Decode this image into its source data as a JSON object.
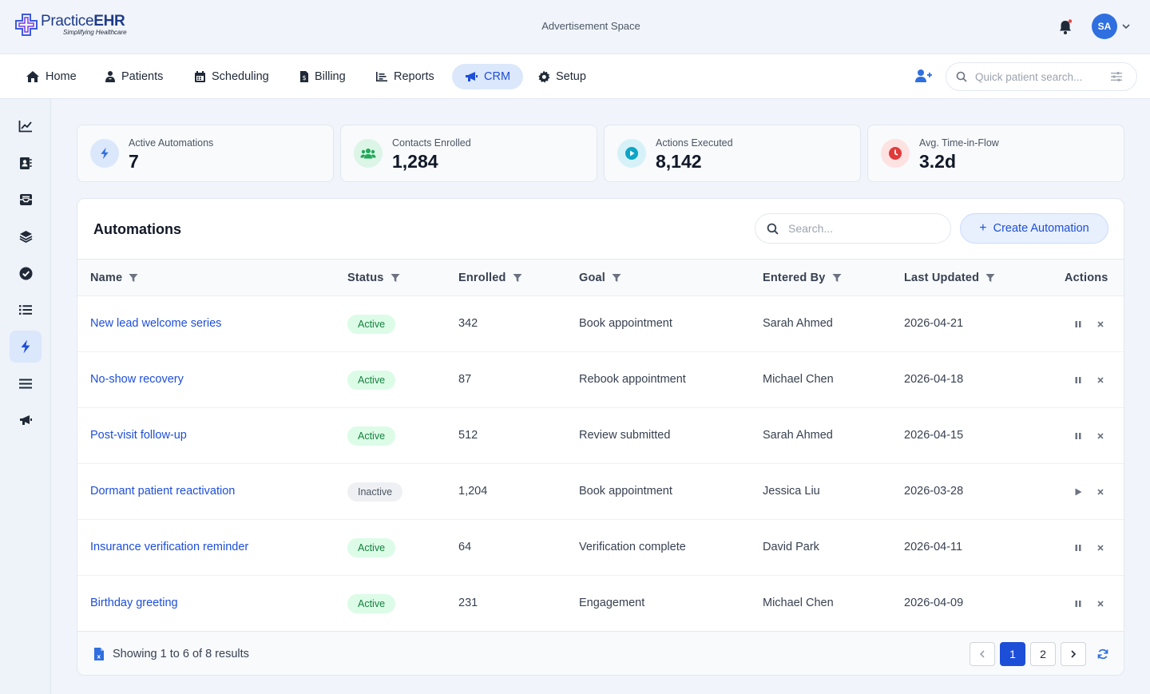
{
  "brand": {
    "name_prefix": "Practice",
    "name_suffix": "EHR",
    "tagline": "Simplifying Healthcare"
  },
  "header": {
    "ad_text": "Advertisement Space",
    "user_initials": "SA"
  },
  "nav": {
    "items": [
      {
        "label": "Home",
        "icon": "home-icon"
      },
      {
        "label": "Patients",
        "icon": "patients-icon"
      },
      {
        "label": "Scheduling",
        "icon": "calendar-icon"
      },
      {
        "label": "Billing",
        "icon": "billing-icon"
      },
      {
        "label": "Reports",
        "icon": "reports-icon"
      },
      {
        "label": "CRM",
        "icon": "megaphone-icon",
        "active": true
      },
      {
        "label": "Setup",
        "icon": "gear-icon"
      }
    ],
    "quick_search_placeholder": "Quick patient search..."
  },
  "sidebar": {
    "items": [
      "chart-line-icon",
      "contact-book-icon",
      "inbox-icon",
      "layers-icon",
      "check-circle-icon",
      "list-icon",
      "bolt-icon",
      "menu-icon",
      "megaphone-icon"
    ],
    "active_index": 6
  },
  "kpis": [
    {
      "label": "Active Automations",
      "value": "7",
      "icon": "bolt-icon",
      "color": "#2f6fe0",
      "bg": "#dbe7fb"
    },
    {
      "label": "Contacts Enrolled",
      "value": "1,284",
      "icon": "users-icon",
      "color": "#22a85a",
      "bg": "#dcf5e6"
    },
    {
      "label": "Actions Executed",
      "value": "8,142",
      "icon": "play-circle-icon",
      "color": "#0ea5c6",
      "bg": "#d7f1f8"
    },
    {
      "label": "Avg. Time-in-Flow",
      "value": "3.2d",
      "icon": "clock-icon",
      "color": "#e03b3b",
      "bg": "#fde2e2"
    }
  ],
  "panel": {
    "title": "Automations",
    "search_placeholder": "Search...",
    "create_label": "Create Automation",
    "columns": [
      "Name",
      "Status",
      "Enrolled",
      "Goal",
      "Entered By",
      "Last Updated",
      "Actions"
    ],
    "rows": [
      {
        "name": "New lead welcome series",
        "status": "Active",
        "enrolled": "342",
        "goal": "Book appointment",
        "entered_by": "Sarah Ahmed",
        "updated": "2026-04-21"
      },
      {
        "name": "No-show recovery",
        "status": "Active",
        "enrolled": "87",
        "goal": "Rebook appointment",
        "entered_by": "Michael Chen",
        "updated": "2026-04-18"
      },
      {
        "name": "Post-visit follow-up",
        "status": "Active",
        "enrolled": "512",
        "goal": "Review submitted",
        "entered_by": "Sarah Ahmed",
        "updated": "2026-04-15"
      },
      {
        "name": "Dormant patient reactivation",
        "status": "Inactive",
        "enrolled": "1,204",
        "goal": "Book appointment",
        "entered_by": "Jessica Liu",
        "updated": "2026-03-28"
      },
      {
        "name": "Insurance verification reminder",
        "status": "Active",
        "enrolled": "64",
        "goal": "Verification complete",
        "entered_by": "David Park",
        "updated": "2026-04-11"
      },
      {
        "name": "Birthday greeting",
        "status": "Active",
        "enrolled": "231",
        "goal": "Engagement",
        "entered_by": "Michael Chen",
        "updated": "2026-04-09"
      }
    ],
    "footer_text": "Showing 1 to 6 of 8 results",
    "pages": [
      "1",
      "2"
    ],
    "current_page": "1"
  }
}
